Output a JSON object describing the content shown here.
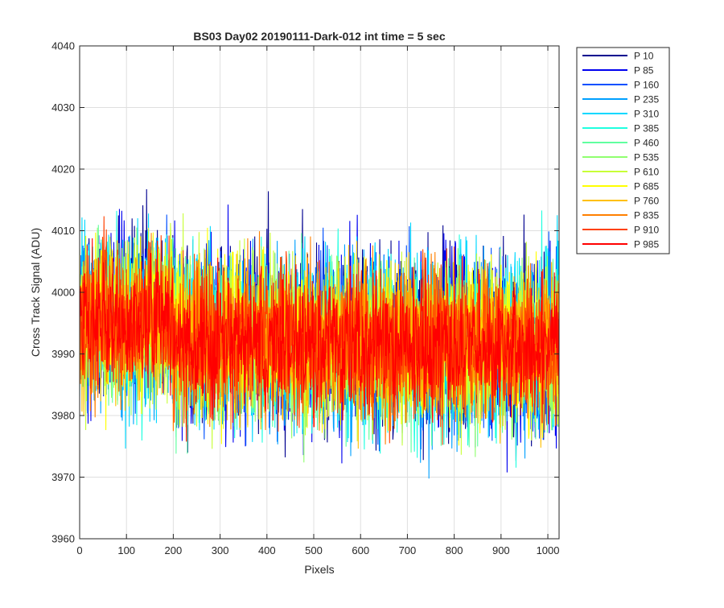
{
  "chart_data": {
    "type": "line",
    "title": "BS03 Day02 20190111-Dark-012 int time = 5 sec",
    "xlabel": "Pixels",
    "ylabel": "Cross Track Signal (ADU)",
    "xlim": [
      0,
      1024
    ],
    "ylim": [
      3960,
      4040
    ],
    "xticks": [
      0,
      100,
      200,
      300,
      400,
      500,
      600,
      700,
      800,
      900,
      1000
    ],
    "yticks": [
      3960,
      3970,
      3980,
      3990,
      4000,
      4010,
      4020,
      4030,
      4040
    ],
    "grid": true,
    "legend_position": "outside-top-right",
    "colormap": "jet",
    "series": [
      {
        "name": "P 10",
        "color": "#00008f",
        "mean": 3994,
        "std": 7.5
      },
      {
        "name": "P 85",
        "color": "#0000f0",
        "mean": 3994,
        "std": 7.5
      },
      {
        "name": "P 160",
        "color": "#0050ff",
        "mean": 3993,
        "std": 7.0
      },
      {
        "name": "P 235",
        "color": "#00a0ff",
        "mean": 3993,
        "std": 7.0
      },
      {
        "name": "P 310",
        "color": "#00d8ff",
        "mean": 3993,
        "std": 7.0
      },
      {
        "name": "P 385",
        "color": "#20ffe0",
        "mean": 3993,
        "std": 7.0
      },
      {
        "name": "P 460",
        "color": "#60ffa0",
        "mean": 3993,
        "std": 6.5
      },
      {
        "name": "P 535",
        "color": "#90ff70",
        "mean": 3993,
        "std": 6.5
      },
      {
        "name": "P 610",
        "color": "#c8ff38",
        "mean": 3993,
        "std": 6.5
      },
      {
        "name": "P 685",
        "color": "#ffff00",
        "mean": 3993,
        "std": 6.5
      },
      {
        "name": "P 760",
        "color": "#ffc000",
        "mean": 3993,
        "std": 6.0
      },
      {
        "name": "P 835",
        "color": "#ff8000",
        "mean": 3993,
        "std": 6.0
      },
      {
        "name": "P 910",
        "color": "#ff4000",
        "mean": 3993,
        "std": 6.0
      },
      {
        "name": "P 985",
        "color": "#ff0000",
        "mean": 3993,
        "std": 5.5
      }
    ]
  }
}
